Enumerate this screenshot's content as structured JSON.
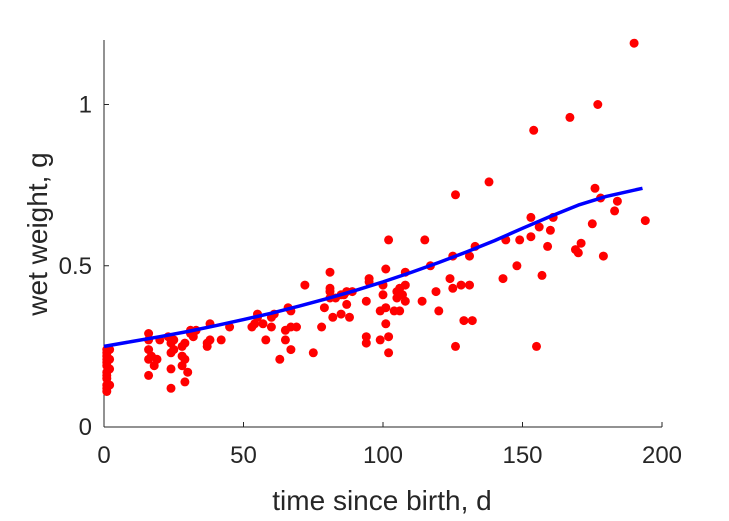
{
  "chart_data": {
    "type": "scatter",
    "xlabel": "time since birth, d",
    "ylabel": "wet weight, g",
    "xlim": [
      0,
      200
    ],
    "ylim": [
      0,
      1.2
    ],
    "x_ticks": [
      0,
      50,
      100,
      150,
      200
    ],
    "x_tick_labels": [
      "0",
      "50",
      "100",
      "150",
      "200"
    ],
    "y_ticks": [
      0,
      0.5,
      1
    ],
    "y_tick_labels": [
      "0",
      "0.5",
      "1"
    ],
    "grid": false,
    "series": [
      {
        "type": "scatter",
        "color": "#ff0000",
        "points": [
          [
            1,
            0.11
          ],
          [
            1,
            0.12
          ],
          [
            1,
            0.13
          ],
          [
            1,
            0.15
          ],
          [
            1,
            0.16
          ],
          [
            1,
            0.17
          ],
          [
            1,
            0.19
          ],
          [
            1,
            0.2
          ],
          [
            1,
            0.21
          ],
          [
            1,
            0.22
          ],
          [
            1,
            0.23
          ],
          [
            1,
            0.24
          ],
          [
            2,
            0.13
          ],
          [
            2,
            0.18
          ],
          [
            2,
            0.21
          ],
          [
            2,
            0.24
          ],
          [
            16,
            0.16
          ],
          [
            16,
            0.21
          ],
          [
            16,
            0.24
          ],
          [
            16,
            0.27
          ],
          [
            16,
            0.29
          ],
          [
            17,
            0.22
          ],
          [
            18,
            0.19
          ],
          [
            19,
            0.21
          ],
          [
            20,
            0.27
          ],
          [
            23,
            0.28
          ],
          [
            24,
            0.12
          ],
          [
            24,
            0.18
          ],
          [
            24,
            0.23
          ],
          [
            24,
            0.26
          ],
          [
            25,
            0.24
          ],
          [
            25,
            0.27
          ],
          [
            28,
            0.19
          ],
          [
            28,
            0.22
          ],
          [
            28,
            0.25
          ],
          [
            29,
            0.14
          ],
          [
            29,
            0.21
          ],
          [
            29,
            0.26
          ],
          [
            30,
            0.17
          ],
          [
            31,
            0.29
          ],
          [
            31,
            0.3
          ],
          [
            32,
            0.28
          ],
          [
            33,
            0.3
          ],
          [
            37,
            0.25
          ],
          [
            37,
            0.26
          ],
          [
            38,
            0.27
          ],
          [
            38,
            0.32
          ],
          [
            42,
            0.27
          ],
          [
            45,
            0.31
          ],
          [
            53,
            0.31
          ],
          [
            54,
            0.32
          ],
          [
            55,
            0.34
          ],
          [
            55,
            0.35
          ],
          [
            57,
            0.32
          ],
          [
            58,
            0.27
          ],
          [
            60,
            0.31
          ],
          [
            60,
            0.34
          ],
          [
            61,
            0.35
          ],
          [
            63,
            0.21
          ],
          [
            65,
            0.27
          ],
          [
            65,
            0.3
          ],
          [
            66,
            0.37
          ],
          [
            67,
            0.24
          ],
          [
            67,
            0.31
          ],
          [
            67,
            0.36
          ],
          [
            69,
            0.31
          ],
          [
            72,
            0.44
          ],
          [
            75,
            0.23
          ],
          [
            78,
            0.31
          ],
          [
            79,
            0.37
          ],
          [
            81,
            0.4
          ],
          [
            81,
            0.42
          ],
          [
            81,
            0.43
          ],
          [
            81,
            0.48
          ],
          [
            82,
            0.34
          ],
          [
            83,
            0.4
          ],
          [
            85,
            0.35
          ],
          [
            85,
            0.41
          ],
          [
            86,
            0.41
          ],
          [
            87,
            0.38
          ],
          [
            87,
            0.42
          ],
          [
            88,
            0.34
          ],
          [
            89,
            0.42
          ],
          [
            94,
            0.26
          ],
          [
            94,
            0.28
          ],
          [
            94,
            0.39
          ],
          [
            95,
            0.45
          ],
          [
            95,
            0.46
          ],
          [
            99,
            0.27
          ],
          [
            99,
            0.36
          ],
          [
            100,
            0.41
          ],
          [
            100,
            0.44
          ],
          [
            101,
            0.32
          ],
          [
            101,
            0.37
          ],
          [
            101,
            0.49
          ],
          [
            102,
            0.23
          ],
          [
            102,
            0.28
          ],
          [
            102,
            0.58
          ],
          [
            104,
            0.36
          ],
          [
            105,
            0.4
          ],
          [
            105,
            0.42
          ],
          [
            106,
            0.36
          ],
          [
            106,
            0.43
          ],
          [
            107,
            0.41
          ],
          [
            108,
            0.39
          ],
          [
            108,
            0.44
          ],
          [
            108,
            0.48
          ],
          [
            114,
            0.39
          ],
          [
            115,
            0.58
          ],
          [
            117,
            0.5
          ],
          [
            119,
            0.42
          ],
          [
            120,
            0.36
          ],
          [
            124,
            0.46
          ],
          [
            125,
            0.53
          ],
          [
            125,
            0.43
          ],
          [
            126,
            0.25
          ],
          [
            126,
            0.72
          ],
          [
            128,
            0.44
          ],
          [
            129,
            0.33
          ],
          [
            131,
            0.44
          ],
          [
            131,
            0.53
          ],
          [
            132,
            0.33
          ],
          [
            133,
            0.56
          ],
          [
            138,
            0.76
          ],
          [
            143,
            0.46
          ],
          [
            144,
            0.58
          ],
          [
            148,
            0.5
          ],
          [
            149,
            0.58
          ],
          [
            153,
            0.59
          ],
          [
            153,
            0.65
          ],
          [
            154,
            0.92
          ],
          [
            155,
            0.25
          ],
          [
            156,
            0.62
          ],
          [
            157,
            0.47
          ],
          [
            159,
            0.56
          ],
          [
            160,
            0.61
          ],
          [
            161,
            0.65
          ],
          [
            167,
            0.96
          ],
          [
            169,
            0.55
          ],
          [
            170,
            0.54
          ],
          [
            171,
            0.57
          ],
          [
            175,
            0.63
          ],
          [
            176,
            0.74
          ],
          [
            177,
            1.0
          ],
          [
            178,
            0.71
          ],
          [
            179,
            0.53
          ],
          [
            183,
            0.67
          ],
          [
            184,
            0.7
          ],
          [
            190,
            1.19
          ],
          [
            194,
            0.64
          ]
        ]
      },
      {
        "type": "line",
        "color": "#0000ff",
        "points": [
          [
            0,
            0.25
          ],
          [
            10,
            0.265
          ],
          [
            20,
            0.28
          ],
          [
            30,
            0.296
          ],
          [
            40,
            0.314
          ],
          [
            50,
            0.333
          ],
          [
            60,
            0.353
          ],
          [
            70,
            0.375
          ],
          [
            80,
            0.398
          ],
          [
            90,
            0.423
          ],
          [
            100,
            0.45
          ],
          [
            110,
            0.479
          ],
          [
            120,
            0.51
          ],
          [
            130,
            0.543
          ],
          [
            140,
            0.578
          ],
          [
            150,
            0.616
          ],
          [
            160,
            0.653
          ],
          [
            170,
            0.688
          ],
          [
            180,
            0.715
          ],
          [
            193,
            0.74
          ]
        ]
      }
    ]
  }
}
